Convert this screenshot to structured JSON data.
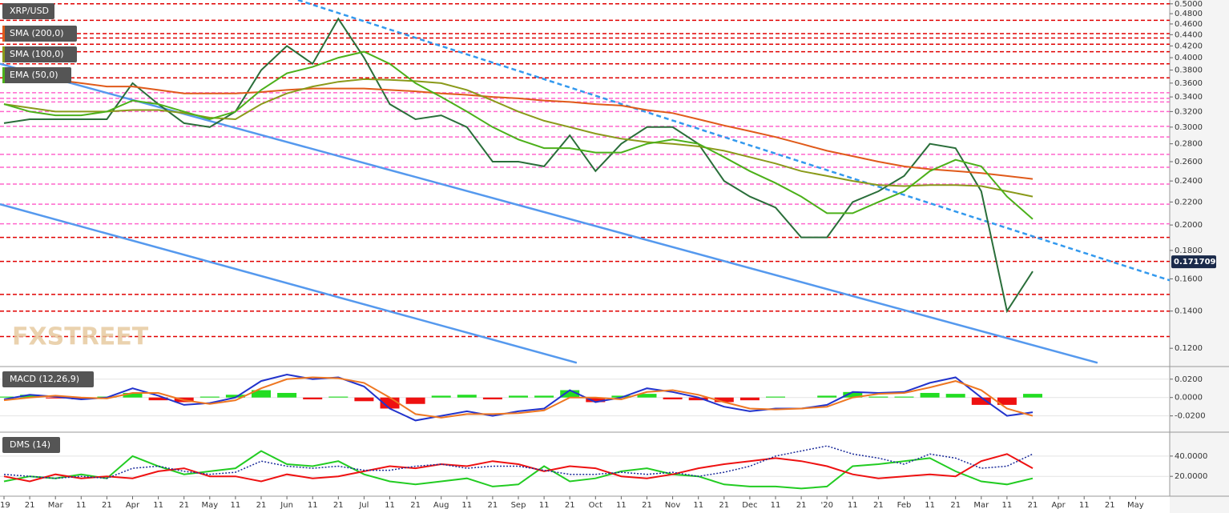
{
  "chart_data": [
    {
      "type": "line",
      "title": "XRP/USD",
      "log": true,
      "last_price": 0.171709,
      "watermark": "FXSTREET",
      "categories": [
        "'19",
        "21",
        "Mar",
        "11",
        "21",
        "Apr",
        "11",
        "21",
        "May",
        "11",
        "21",
        "Jun",
        "11",
        "21",
        "Jul",
        "11",
        "21",
        "Aug",
        "11",
        "21",
        "Sep",
        "11",
        "21",
        "Oct",
        "11",
        "21",
        "Nov",
        "11",
        "21",
        "Dec",
        "11",
        "21",
        "'20",
        "11",
        "21",
        "Feb",
        "11",
        "21",
        "Mar",
        "11",
        "21",
        "Apr",
        "11",
        "21",
        "May"
      ],
      "ylim": [
        0.112,
        0.508
      ],
      "yticks": [
        {
          "value": 0.5,
          "label": "0.5000"
        },
        {
          "value": 0.48,
          "label": "0.4800"
        },
        {
          "value": 0.46,
          "label": "0.4600"
        },
        {
          "value": 0.44,
          "label": "0.4400"
        },
        {
          "value": 0.42,
          "label": "0.4200"
        },
        {
          "value": 0.4,
          "label": "0.4000"
        },
        {
          "value": 0.38,
          "label": "0.3800"
        },
        {
          "value": 0.36,
          "label": "0.3600"
        },
        {
          "value": 0.34,
          "label": "0.3400"
        },
        {
          "value": 0.32,
          "label": "0.3200"
        },
        {
          "value": 0.3,
          "label": "0.3000"
        },
        {
          "value": 0.28,
          "label": "0.2800"
        },
        {
          "value": 0.26,
          "label": "0.2600"
        },
        {
          "value": 0.24,
          "label": "0.2400"
        },
        {
          "value": 0.22,
          "label": "0.2200"
        },
        {
          "value": 0.2,
          "label": "0.2000"
        },
        {
          "value": 0.18,
          "label": "0.1800"
        },
        {
          "value": 0.16,
          "label": "0.1600"
        },
        {
          "value": 0.14,
          "label": "0.1400"
        },
        {
          "value": 0.12,
          "label": "0.1200"
        }
      ],
      "levels": [
        {
          "value": 0.5,
          "color": "#e00000"
        },
        {
          "value": 0.467,
          "color": "#e00000"
        },
        {
          "value": 0.442,
          "color": "#e00000"
        },
        {
          "value": 0.434,
          "color": "#e00000"
        },
        {
          "value": 0.423,
          "color": "#e00000"
        },
        {
          "value": 0.41,
          "color": "#e00000"
        },
        {
          "value": 0.39,
          "color": "#e00000"
        },
        {
          "value": 0.368,
          "color": "#e00000"
        },
        {
          "value": 0.346,
          "color": "#ff66cc"
        },
        {
          "value": 0.338,
          "color": "#ff66cc"
        },
        {
          "value": 0.333,
          "color": "#ff66cc"
        },
        {
          "value": 0.32,
          "color": "#ff66cc"
        },
        {
          "value": 0.301,
          "color": "#ff66cc"
        },
        {
          "value": 0.288,
          "color": "#ff66cc"
        },
        {
          "value": 0.268,
          "color": "#ff66cc"
        },
        {
          "value": 0.254,
          "color": "#ff66cc"
        },
        {
          "value": 0.237,
          "color": "#ff66cc"
        },
        {
          "value": 0.218,
          "color": "#ff66cc"
        },
        {
          "value": 0.201,
          "color": "#ff66cc"
        },
        {
          "value": 0.19,
          "color": "#e00000"
        },
        {
          "value": 0.172,
          "color": "#e00000"
        },
        {
          "value": 0.15,
          "color": "#e00000"
        },
        {
          "value": 0.14,
          "color": "#e00000"
        },
        {
          "value": 0.126,
          "color": "#e00000"
        }
      ],
      "trendlines": [
        {
          "x": [
            11.43,
            45.33
          ],
          "values": [
            0.508,
            0.159
          ],
          "color": "#3399ee",
          "dashed": true
        },
        {
          "x": [
            -0.156,
            42.52
          ],
          "values": [
            0.39,
            0.113
          ],
          "color": "#5599ee",
          "dashed": false
        },
        {
          "x": [
            -0.156,
            22.27
          ],
          "values": [
            0.218,
            0.113
          ],
          "color": "#5599ee",
          "dashed": false
        }
      ],
      "series": [
        {
          "color": "#2a6e3a",
          "values": [
            0.305,
            0.31,
            0.31,
            0.31,
            0.31,
            0.36,
            0.33,
            0.305,
            0.3,
            0.32,
            0.38,
            0.42,
            0.39,
            0.47,
            0.4,
            0.33,
            0.31,
            0.315,
            0.3,
            0.26,
            0.26,
            0.255,
            0.29,
            0.25,
            0.28,
            0.3,
            0.3,
            0.28,
            0.24,
            0.225,
            0.215,
            0.19,
            0.19,
            0.22,
            0.23,
            0.245,
            0.28,
            0.275,
            0.23,
            0.14,
            0.165,
            null,
            null,
            null,
            null
          ]
        },
        {
          "name": "SMA (200,0)",
          "color": "#e05a1a",
          "values": [
            0.37,
            0.37,
            0.365,
            0.36,
            0.355,
            0.355,
            0.35,
            0.345,
            0.345,
            0.345,
            0.347,
            0.35,
            0.352,
            0.352,
            0.352,
            0.35,
            0.348,
            0.345,
            0.343,
            0.34,
            0.338,
            0.335,
            0.333,
            0.33,
            0.328,
            0.322,
            0.318,
            0.31,
            0.302,
            0.295,
            0.288,
            0.28,
            0.272,
            0.266,
            0.26,
            0.255,
            0.252,
            0.25,
            0.248,
            0.245,
            0.242,
            null,
            null,
            null,
            null
          ]
        },
        {
          "name": "SMA (100,0)",
          "color": "#8a9a1a",
          "values": [
            0.33,
            0.325,
            0.32,
            0.32,
            0.32,
            0.322,
            0.322,
            0.318,
            0.312,
            0.31,
            0.33,
            0.345,
            0.355,
            0.362,
            0.366,
            0.365,
            0.363,
            0.36,
            0.35,
            0.335,
            0.32,
            0.308,
            0.3,
            0.292,
            0.286,
            0.282,
            0.28,
            0.277,
            0.272,
            0.265,
            0.258,
            0.25,
            0.245,
            0.24,
            0.236,
            0.235,
            0.236,
            0.236,
            0.235,
            0.23,
            0.225,
            null,
            null,
            null,
            null
          ]
        },
        {
          "name": "EMA (50,0)",
          "color": "#4cb01a",
          "values": [
            0.33,
            0.32,
            0.315,
            0.315,
            0.32,
            0.335,
            0.33,
            0.32,
            0.31,
            0.32,
            0.35,
            0.375,
            0.385,
            0.4,
            0.41,
            0.39,
            0.36,
            0.34,
            0.32,
            0.3,
            0.285,
            0.275,
            0.275,
            0.27,
            0.27,
            0.28,
            0.285,
            0.28,
            0.265,
            0.25,
            0.238,
            0.225,
            0.21,
            0.21,
            0.22,
            0.23,
            0.25,
            0.262,
            0.255,
            0.225,
            0.205,
            null,
            null,
            null,
            null
          ]
        }
      ]
    },
    {
      "type": "combo",
      "title": "MACD (12,26,9)",
      "ylim": [
        -0.036,
        0.032
      ],
      "yticks": [
        {
          "value": 0.02,
          "label": "0.0200"
        },
        {
          "value": 0,
          "label": "0.0000"
        },
        {
          "value": -0.02,
          "label": "-0.0200"
        }
      ],
      "series": [
        {
          "style": "bar",
          "color": "#22dd22",
          "negative_color": "#ee1111",
          "values": [
            0.001,
            0.003,
            -0.001,
            -0.002,
            0.001,
            0.005,
            -0.003,
            -0.005,
            0.001,
            0.003,
            0.008,
            0.005,
            -0.002,
            0.001,
            -0.004,
            -0.012,
            -0.007,
            0.002,
            0.003,
            -0.002,
            0.002,
            0.002,
            0.008,
            -0.005,
            0.002,
            0.004,
            -0.002,
            -0.003,
            -0.005,
            -0.003,
            0.001,
            0,
            0.002,
            0.006,
            0.001,
            0.001,
            0.005,
            0.004,
            -0.008,
            -0.008,
            0.004,
            null,
            null,
            null,
            null
          ]
        },
        {
          "style": "line",
          "color": "#2233cc",
          "values": [
            -0.002,
            0.003,
            0.001,
            -0.002,
            0,
            0.01,
            0.002,
            -0.008,
            -0.006,
            0,
            0.018,
            0.025,
            0.02,
            0.022,
            0.012,
            -0.012,
            -0.025,
            -0.02,
            -0.015,
            -0.02,
            -0.015,
            -0.012,
            0.008,
            -0.005,
            0,
            0.01,
            0.006,
            0,
            -0.01,
            -0.015,
            -0.012,
            -0.012,
            -0.008,
            0.006,
            0.005,
            0.006,
            0.016,
            0.022,
            0,
            -0.02,
            -0.016,
            null,
            null,
            null,
            null
          ]
        },
        {
          "style": "line",
          "color": "#ee7722",
          "values": [
            -0.003,
            0,
            0.002,
            0,
            -0.001,
            0.005,
            0.005,
            -0.003,
            -0.007,
            -0.003,
            0.01,
            0.02,
            0.022,
            0.021,
            0.016,
            0,
            -0.018,
            -0.022,
            -0.018,
            -0.018,
            -0.017,
            -0.014,
            0,
            0,
            -0.002,
            0.006,
            0.008,
            0.003,
            -0.005,
            -0.012,
            -0.013,
            -0.012,
            -0.01,
            0,
            0.004,
            0.005,
            0.011,
            0.018,
            0.008,
            -0.012,
            -0.02,
            null,
            null,
            null,
            null
          ]
        }
      ]
    },
    {
      "type": "line",
      "title": "DMS (14)",
      "ylim": [
        2,
        62
      ],
      "yticks": [
        {
          "value": 40,
          "label": "40.0000"
        },
        {
          "value": 20,
          "label": "20.0000"
        }
      ],
      "series": [
        {
          "color": "#22cc22",
          "values": [
            15,
            20,
            18,
            22,
            18,
            40,
            30,
            22,
            25,
            28,
            45,
            32,
            30,
            35,
            22,
            15,
            12,
            15,
            18,
            10,
            12,
            30,
            15,
            18,
            25,
            28,
            22,
            20,
            12,
            10,
            10,
            8,
            10,
            30,
            32,
            35,
            38,
            25,
            15,
            12,
            18,
            null,
            null,
            null,
            null
          ]
        },
        {
          "color": "#ee1111",
          "values": [
            20,
            15,
            22,
            18,
            20,
            18,
            25,
            28,
            20,
            20,
            15,
            22,
            18,
            20,
            25,
            30,
            28,
            32,
            30,
            35,
            32,
            25,
            30,
            28,
            20,
            18,
            22,
            28,
            32,
            35,
            38,
            35,
            30,
            22,
            18,
            20,
            22,
            20,
            35,
            42,
            28,
            null,
            null,
            null,
            null
          ]
        },
        {
          "color": "#1a2a99",
          "dotted": true,
          "values": [
            22,
            20,
            18,
            20,
            18,
            28,
            30,
            25,
            22,
            24,
            35,
            30,
            28,
            30,
            26,
            26,
            30,
            32,
            28,
            30,
            30,
            26,
            22,
            22,
            24,
            22,
            24,
            20,
            24,
            30,
            40,
            45,
            50,
            42,
            38,
            32,
            42,
            38,
            28,
            30,
            42,
            null,
            null,
            null,
            null
          ]
        }
      ]
    }
  ]
}
